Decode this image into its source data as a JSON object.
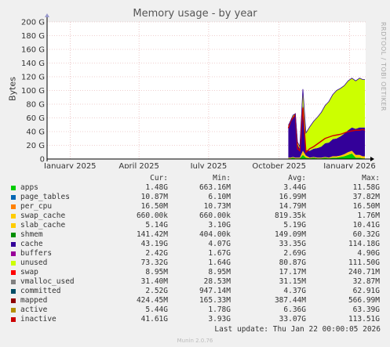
{
  "chart_data": {
    "type": "area",
    "title": "Memory usage - by year",
    "ylabel": "Bytes",
    "ylim": [
      0,
      200
    ],
    "yunit": "G",
    "yticks": [
      "0",
      "20 G",
      "40 G",
      "60 G",
      "80 G",
      "100 G",
      "120 G",
      "140 G",
      "160 G",
      "180 G",
      "200 G"
    ],
    "xticks": [
      {
        "label": "January 2025",
        "date": "2025-01-01"
      },
      {
        "label": "April 2025",
        "date": "2025-04-01"
      },
      {
        "label": "July 2025",
        "date": "2025-07-01"
      },
      {
        "label": "October 2025",
        "date": "2025-10-01"
      },
      {
        "label": "January 2026",
        "date": "2026-01-01"
      }
    ],
    "xlim": [
      "2024-12-02",
      "2026-01-22"
    ],
    "grid": true,
    "stack": {
      "dates": [
        "2025-10-13",
        "2025-10-16",
        "2025-10-19",
        "2025-10-22",
        "2025-10-25",
        "2025-10-28",
        "2025-11-01",
        "2025-11-05",
        "2025-11-10",
        "2025-11-15",
        "2025-11-20",
        "2025-11-25",
        "2025-11-30",
        "2025-12-05",
        "2025-12-10",
        "2025-12-15",
        "2025-12-20",
        "2025-12-25",
        "2025-12-30",
        "2026-01-04",
        "2026-01-09",
        "2026-01-14",
        "2026-01-18",
        "2026-01-21"
      ],
      "layers": [
        {
          "name": "apps",
          "color": "#00cc00",
          "values": [
            1,
            1,
            2,
            1,
            1,
            1,
            6,
            2,
            1,
            2,
            1,
            1,
            2,
            1,
            2,
            2,
            3,
            4,
            6,
            8,
            2,
            2,
            1,
            1
          ]
        },
        {
          "name": "slab_cache",
          "color": "#ffcc00",
          "values": [
            1,
            1,
            1,
            1,
            1,
            1,
            6,
            3,
            1,
            1,
            1,
            1,
            1,
            1,
            2,
            2,
            2,
            3,
            4,
            4,
            4,
            4,
            3,
            3
          ]
        },
        {
          "name": "cache",
          "color": "#330099",
          "values": [
            45,
            52,
            58,
            62,
            20,
            12,
            70,
            8,
            10,
            12,
            14,
            16,
            20,
            22,
            25,
            26,
            28,
            30,
            32,
            34,
            38,
            40,
            42,
            42
          ]
        },
        {
          "name": "unused",
          "color": "#ccff00",
          "values": [
            2,
            2,
            3,
            2,
            3,
            4,
            20,
            25,
            35,
            40,
            45,
            50,
            55,
            60,
            65,
            70,
            70,
            70,
            72,
            72,
            70,
            72,
            70,
            70
          ]
        }
      ],
      "committed": [
        45,
        55,
        60,
        65,
        15,
        12,
        75,
        10,
        15,
        18,
        22,
        26,
        30,
        32,
        34,
        35,
        36,
        38,
        40,
        41,
        42,
        42,
        43,
        42
      ]
    }
  },
  "legend": {
    "headers": {
      "cur": "Cur:",
      "min": "Min:",
      "avg": "Avg:",
      "max": "Max:"
    },
    "rows": [
      {
        "name": "apps",
        "color": "#00cc00",
        "cur": "1.48G",
        "min": "663.16M",
        "avg": "3.44G",
        "max": "11.58G"
      },
      {
        "name": "page_tables",
        "color": "#0066b3",
        "cur": "10.87M",
        "min": "6.10M",
        "avg": "16.99M",
        "max": "37.82M"
      },
      {
        "name": "per_cpu",
        "color": "#ff8000",
        "cur": "16.50M",
        "min": "10.73M",
        "avg": "14.79M",
        "max": "16.50M"
      },
      {
        "name": "swap_cache",
        "color": "#ffcc00",
        "cur": "660.00k",
        "min": "660.00k",
        "avg": "819.35k",
        "max": "1.76M"
      },
      {
        "name": "slab_cache",
        "color": "#ffcc00",
        "cur": "5.14G",
        "min": "3.10G",
        "avg": "5.19G",
        "max": "10.41G"
      },
      {
        "name": "shmem",
        "color": "#008f00",
        "cur": "141.42M",
        "min": "404.00k",
        "avg": "149.09M",
        "max": "60.32G"
      },
      {
        "name": "cache",
        "color": "#330099",
        "cur": "43.19G",
        "min": "4.07G",
        "avg": "33.35G",
        "max": "114.18G"
      },
      {
        "name": "buffers",
        "color": "#990099",
        "cur": "2.42G",
        "min": "1.67G",
        "avg": "2.69G",
        "max": "4.90G"
      },
      {
        "name": "unused",
        "color": "#ccff00",
        "cur": "73.32G",
        "min": "1.64G",
        "avg": "80.87G",
        "max": "111.50G"
      },
      {
        "name": "swap",
        "color": "#ff0000",
        "cur": "8.95M",
        "min": "8.95M",
        "avg": "17.17M",
        "max": "240.71M"
      },
      {
        "name": "vmalloc_used",
        "color": "#808080",
        "cur": "31.40M",
        "min": "28.53M",
        "avg": "31.15M",
        "max": "32.87M"
      },
      {
        "name": "committed",
        "color": "#004d66",
        "cur": "2.52G",
        "min": "947.14M",
        "avg": "4.37G",
        "max": "62.91G"
      },
      {
        "name": "mapped",
        "color": "#8f0000",
        "cur": "424.45M",
        "min": "165.33M",
        "avg": "387.44M",
        "max": "566.99M"
      },
      {
        "name": "active",
        "color": "#b38f00",
        "cur": "5.44G",
        "min": "1.78G",
        "avg": "6.36G",
        "max": "63.39G"
      },
      {
        "name": "inactive",
        "color": "#cc0000",
        "cur": "41.61G",
        "min": "3.93G",
        "avg": "33.07G",
        "max": "113.51G"
      }
    ]
  },
  "last_update": "Last update: Thu Jan 22 00:00:05 2026",
  "watermark": "RRDTOOL / TOBI OETIKER",
  "version": "Munin 2.0.76"
}
